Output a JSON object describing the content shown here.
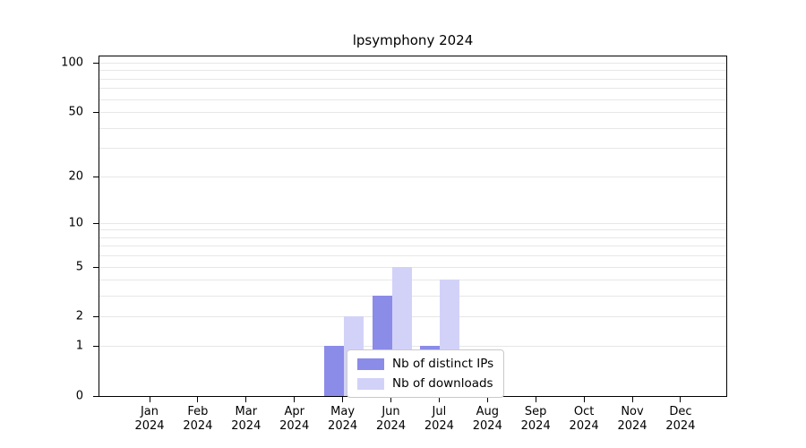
{
  "chart_data": {
    "type": "bar",
    "title": "lpsymphony 2024",
    "categories": [
      "Jan",
      "Feb",
      "Mar",
      "Apr",
      "May",
      "Jun",
      "Jul",
      "Aug",
      "Sep",
      "Oct",
      "Nov",
      "Dec"
    ],
    "year_label": "2024",
    "series": [
      {
        "name": "Nb of distinct IPs",
        "color": "#8b8be8",
        "values": [
          0,
          0,
          0,
          0,
          1,
          3,
          1,
          0,
          0,
          0,
          0,
          0
        ]
      },
      {
        "name": "Nb of downloads",
        "color": "#d2d2f8",
        "values": [
          0,
          0,
          0,
          0,
          2,
          5,
          4,
          0,
          0,
          0,
          0,
          0
        ]
      }
    ],
    "y_ticks": [
      0,
      1,
      2,
      5,
      10,
      20,
      50,
      100
    ],
    "gridline_values": [
      1,
      2,
      3,
      4,
      5,
      6,
      7,
      8,
      9,
      10,
      20,
      30,
      40,
      50,
      60,
      70,
      80,
      90,
      100
    ],
    "ylim": [
      0,
      110
    ],
    "scale": "log1p",
    "grid": true,
    "legend_position": "inside-bottom-center",
    "colors": {
      "gridline": "#e7e7e7",
      "axis": "#000000",
      "background": "#ffffff"
    }
  }
}
